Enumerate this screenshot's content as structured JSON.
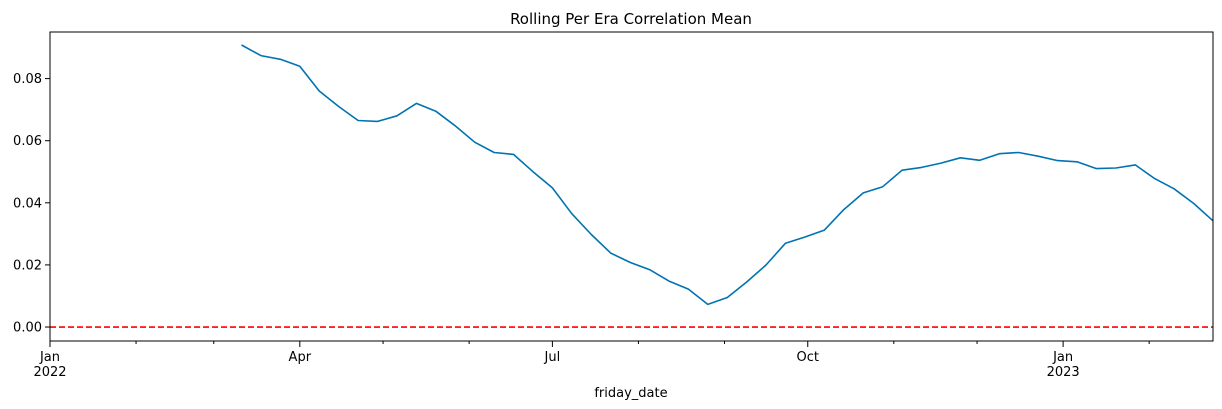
{
  "chart_data": {
    "type": "line",
    "title": "Rolling Per Era Correlation Mean",
    "xlabel": "friday_date",
    "ylabel": "",
    "x_axis_type": "date",
    "xlim": [
      "2022-01-01",
      "2023-02-24"
    ],
    "ylim": [
      -0.0045,
      0.095
    ],
    "y_ticks": [
      0.0,
      0.02,
      0.04,
      0.06,
      0.08
    ],
    "y_tick_labels": [
      "0.00",
      "0.02",
      "0.04",
      "0.06",
      "0.08"
    ],
    "x_major_ticks": [
      {
        "date": "2022-01-01",
        "label": "Jan",
        "sublabel": "2022"
      },
      {
        "date": "2022-04-01",
        "label": "Apr",
        "sublabel": ""
      },
      {
        "date": "2022-07-01",
        "label": "Jul",
        "sublabel": ""
      },
      {
        "date": "2022-10-01",
        "label": "Oct",
        "sublabel": ""
      },
      {
        "date": "2023-01-01",
        "label": "Jan",
        "sublabel": "2023"
      }
    ],
    "x_minor_ticks": [
      "2022-02-01",
      "2022-03-01",
      "2022-05-01",
      "2022-06-01",
      "2022-08-01",
      "2022-09-01",
      "2022-11-01",
      "2022-12-01",
      "2023-02-01"
    ],
    "grid": false,
    "series": [
      {
        "color": "#0173b2",
        "x": [
          "2022-03-11",
          "2022-03-18",
          "2022-03-25",
          "2022-04-01",
          "2022-04-08",
          "2022-04-15",
          "2022-04-22",
          "2022-04-29",
          "2022-05-06",
          "2022-05-13",
          "2022-05-20",
          "2022-05-27",
          "2022-06-03",
          "2022-06-10",
          "2022-06-17",
          "2022-06-24",
          "2022-07-01",
          "2022-07-08",
          "2022-07-15",
          "2022-07-22",
          "2022-07-29",
          "2022-08-05",
          "2022-08-12",
          "2022-08-19",
          "2022-08-26",
          "2022-09-02",
          "2022-09-09",
          "2022-09-16",
          "2022-09-23",
          "2022-09-30",
          "2022-10-07",
          "2022-10-14",
          "2022-10-21",
          "2022-10-28",
          "2022-11-04",
          "2022-11-11",
          "2022-11-18",
          "2022-11-25",
          "2022-12-02",
          "2022-12-09",
          "2022-12-16",
          "2022-12-23",
          "2022-12-30",
          "2023-01-06",
          "2023-01-13",
          "2023-01-20",
          "2023-01-27",
          "2023-02-03",
          "2023-02-10",
          "2023-02-17",
          "2023-02-24"
        ],
        "y": [
          0.0908,
          0.0874,
          0.0862,
          0.084,
          0.076,
          0.071,
          0.0665,
          0.0662,
          0.068,
          0.072,
          0.0695,
          0.0648,
          0.0595,
          0.0562,
          0.0556,
          0.05,
          0.0448,
          0.0365,
          0.0298,
          0.0238,
          0.0208,
          0.0185,
          0.0148,
          0.0122,
          0.0073,
          0.0095,
          0.0145,
          0.02,
          0.027,
          0.029,
          0.0312,
          0.0378,
          0.0432,
          0.0452,
          0.0505,
          0.0514,
          0.0528,
          0.0545,
          0.0537,
          0.0558,
          0.0562,
          0.055,
          0.0536,
          0.0532,
          0.051,
          0.0512,
          0.0522,
          0.0478,
          0.0445,
          0.0398,
          0.0342
        ]
      }
    ],
    "reference_line": {
      "y": 0.0,
      "color": "#ff0000",
      "style": "dashed"
    }
  }
}
